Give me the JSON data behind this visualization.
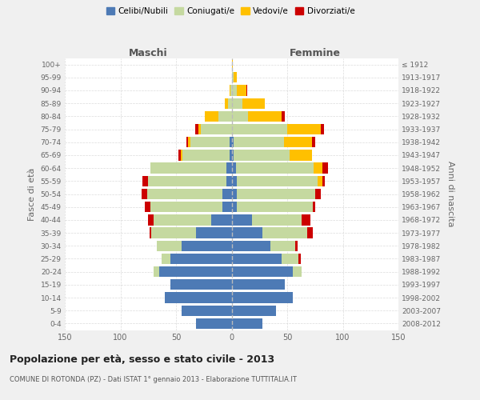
{
  "age_groups": [
    "0-4",
    "5-9",
    "10-14",
    "15-19",
    "20-24",
    "25-29",
    "30-34",
    "35-39",
    "40-44",
    "45-49",
    "50-54",
    "55-59",
    "60-64",
    "65-69",
    "70-74",
    "75-79",
    "80-84",
    "85-89",
    "90-94",
    "95-99",
    "100+"
  ],
  "birth_years": [
    "2008-2012",
    "2003-2007",
    "1998-2002",
    "1993-1997",
    "1988-1992",
    "1983-1987",
    "1978-1982",
    "1973-1977",
    "1968-1972",
    "1963-1967",
    "1958-1962",
    "1953-1957",
    "1948-1952",
    "1943-1947",
    "1938-1942",
    "1933-1937",
    "1928-1932",
    "1923-1927",
    "1918-1922",
    "1913-1917",
    "≤ 1912"
  ],
  "males": {
    "celibe": [
      32,
      45,
      60,
      55,
      65,
      55,
      45,
      32,
      18,
      8,
      8,
      5,
      5,
      2,
      2,
      0,
      0,
      0,
      0,
      0,
      0
    ],
    "coniugato": [
      0,
      0,
      0,
      0,
      5,
      8,
      22,
      40,
      52,
      65,
      68,
      70,
      68,
      42,
      35,
      28,
      12,
      3,
      1,
      0,
      0
    ],
    "vedovo": [
      0,
      0,
      0,
      0,
      0,
      0,
      0,
      0,
      0,
      0,
      0,
      0,
      0,
      2,
      2,
      2,
      12,
      3,
      1,
      0,
      0
    ],
    "divorziato": [
      0,
      0,
      0,
      0,
      0,
      0,
      0,
      2,
      5,
      5,
      5,
      5,
      0,
      2,
      2,
      3,
      0,
      0,
      0,
      0,
      0
    ]
  },
  "females": {
    "nubile": [
      28,
      40,
      55,
      48,
      55,
      45,
      35,
      28,
      18,
      5,
      5,
      5,
      4,
      2,
      2,
      0,
      0,
      0,
      0,
      0,
      0
    ],
    "coniugata": [
      0,
      0,
      0,
      0,
      8,
      15,
      22,
      40,
      45,
      68,
      70,
      72,
      70,
      50,
      45,
      50,
      15,
      10,
      5,
      2,
      0
    ],
    "vedova": [
      0,
      0,
      0,
      0,
      0,
      0,
      0,
      0,
      0,
      0,
      0,
      5,
      8,
      20,
      25,
      30,
      30,
      20,
      8,
      3,
      1
    ],
    "divorziata": [
      0,
      0,
      0,
      0,
      0,
      2,
      2,
      5,
      8,
      2,
      5,
      2,
      5,
      0,
      3,
      3,
      3,
      0,
      1,
      0,
      0
    ]
  },
  "colors": {
    "celibe": "#4d7ab5",
    "coniugato": "#c5d9a0",
    "vedovo": "#ffc000",
    "divorziato": "#cc0000"
  },
  "legend_labels": [
    "Celibi/Nubili",
    "Coniugati/e",
    "Vedovi/e",
    "Divorziati/e"
  ],
  "title": "Popolazione per età, sesso e stato civile - 2013",
  "subtitle": "COMUNE DI ROTONDA (PZ) - Dati ISTAT 1° gennaio 2013 - Elaborazione TUTTITALIA.IT",
  "xlabel_left": "Maschi",
  "xlabel_right": "Femmine",
  "ylabel_left": "Fasce di età",
  "ylabel_right": "Anni di nascita",
  "xlim": 150,
  "bg_color": "#f0f0f0",
  "plot_bg": "#ffffff",
  "grid_color": "#cccccc"
}
